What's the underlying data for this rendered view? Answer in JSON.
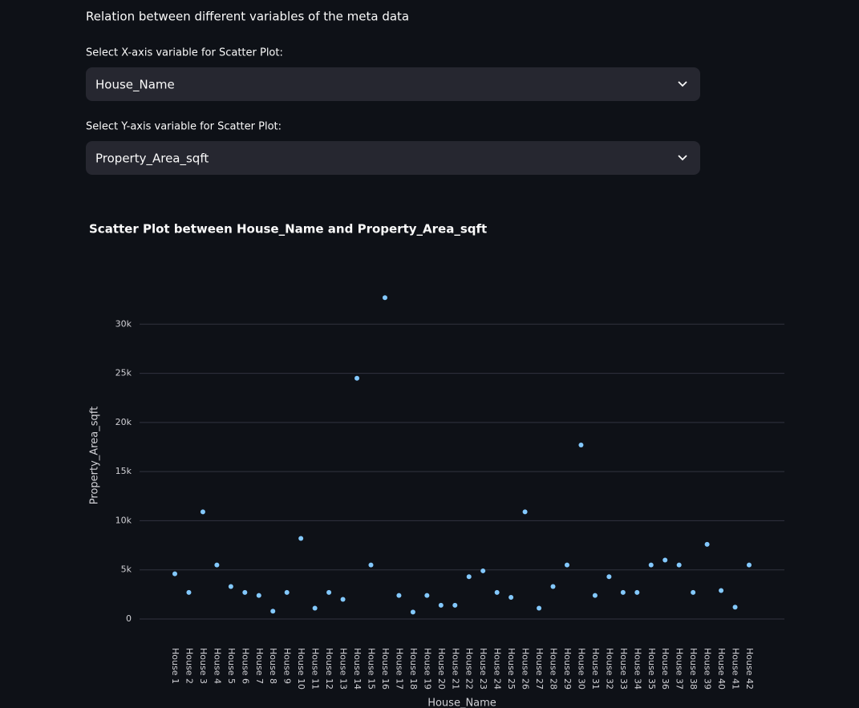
{
  "heading": "Relation between different variables of the meta data",
  "x_select": {
    "label": "Select X-axis variable for Scatter Plot:",
    "value": "House_Name"
  },
  "y_select": {
    "label": "Select Y-axis variable for Scatter Plot:",
    "value": "Property_Area_sqft"
  },
  "chart_data": {
    "type": "scatter",
    "title": "Scatter Plot between House_Name and Property_Area_sqft",
    "x_label": "House_Name",
    "y_label": "Property_Area_sqft",
    "categories": [
      "House 1",
      "House 2",
      "House 3",
      "House 4",
      "House 5",
      "House 6",
      "House 7",
      "House 8",
      "House 9",
      "House 10",
      "House 11",
      "House 12",
      "House 13",
      "House 14",
      "House 15",
      "House 16",
      "House 17",
      "House 18",
      "House 19",
      "House 20",
      "House 21",
      "House 22",
      "House 23",
      "House 24",
      "House 25",
      "House 26",
      "House 27",
      "House 28",
      "House 29",
      "House 30",
      "House 31",
      "House 32",
      "House 33",
      "House 34",
      "House 35",
      "House 36",
      "House 37",
      "House 38",
      "House 39",
      "House 40",
      "House 41",
      "House 42"
    ],
    "values": [
      4600,
      2700,
      10900,
      5500,
      3300,
      2700,
      2400,
      800,
      2700,
      8200,
      1100,
      2700,
      2000,
      24500,
      5500,
      32700,
      2400,
      700,
      2400,
      1400,
      1400,
      4300,
      4900,
      2700,
      2200,
      10900,
      1100,
      3300,
      5500,
      17700,
      2400,
      4300,
      2700,
      2700,
      5500,
      6000,
      5500,
      2700,
      7600,
      2900,
      1200,
      5500
    ],
    "color": "#83c9ff",
    "ylim": [
      0,
      35000
    ],
    "yticks": [
      0,
      {
        "value": 5000,
        "label": "5k"
      },
      {
        "value": 10000,
        "label": "10k"
      },
      {
        "value": 15000,
        "label": "15k"
      },
      {
        "value": 20000,
        "label": "20k"
      },
      {
        "value": 25000,
        "label": "25k"
      },
      {
        "value": 30000,
        "label": "30k"
      }
    ],
    "grid": true
  }
}
